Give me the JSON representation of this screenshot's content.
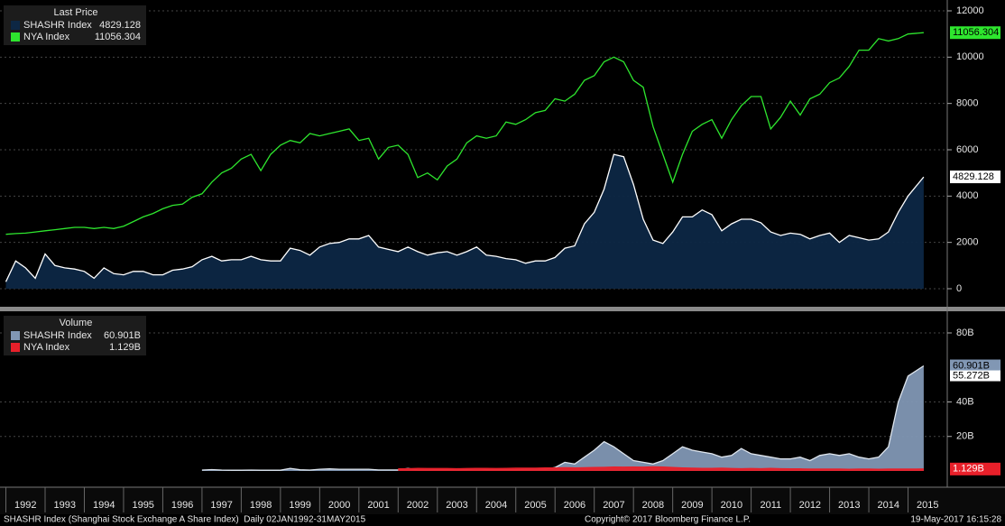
{
  "chart_data": [
    {
      "type": "area",
      "title": "Last Price",
      "xlim": [
        1991.85,
        2016.0
      ],
      "ylim": [
        0,
        12000
      ],
      "yticks": [
        0,
        2000,
        4000,
        6000,
        8000,
        10000,
        12000
      ],
      "grid": true,
      "series": [
        {
          "name": "SHASHR Index",
          "color": "#ffffff",
          "fill": "#0d2744",
          "x": [
            1992,
            1992.25,
            1992.5,
            1992.75,
            1993,
            1993.25,
            1993.5,
            1993.75,
            1994,
            1994.25,
            1994.5,
            1994.75,
            1995,
            1995.25,
            1995.5,
            1995.75,
            1996,
            1996.25,
            1996.5,
            1996.75,
            1997,
            1997.25,
            1997.5,
            1997.75,
            1998,
            1998.25,
            1998.5,
            1998.75,
            1999,
            1999.25,
            1999.5,
            1999.75,
            2000,
            2000.25,
            2000.5,
            2000.75,
            2001,
            2001.25,
            2001.5,
            2001.75,
            2002,
            2002.25,
            2002.5,
            2002.75,
            2003,
            2003.25,
            2003.5,
            2003.75,
            2004,
            2004.25,
            2004.5,
            2004.75,
            2005,
            2005.25,
            2005.5,
            2005.75,
            2006,
            2006.25,
            2006.5,
            2006.75,
            2007,
            2007.25,
            2007.5,
            2007.75,
            2008,
            2008.25,
            2008.5,
            2008.75,
            2009,
            2009.25,
            2009.5,
            2009.75,
            2010,
            2010.25,
            2010.5,
            2010.75,
            2011,
            2011.25,
            2011.5,
            2011.75,
            2012,
            2012.25,
            2012.5,
            2012.75,
            2013,
            2013.25,
            2013.5,
            2013.75,
            2014,
            2014.25,
            2014.5,
            2014.75,
            2015,
            2015.4
          ],
          "values": [
            300,
            1200,
            900,
            450,
            1500,
            1000,
            900,
            850,
            750,
            450,
            900,
            650,
            600,
            750,
            750,
            600,
            600,
            800,
            850,
            950,
            1250,
            1400,
            1200,
            1250,
            1250,
            1400,
            1250,
            1200,
            1200,
            1750,
            1650,
            1450,
            1800,
            1950,
            2000,
            2150,
            2150,
            2300,
            1800,
            1700,
            1600,
            1800,
            1600,
            1450,
            1550,
            1600,
            1450,
            1600,
            1800,
            1450,
            1400,
            1300,
            1250,
            1100,
            1200,
            1200,
            1350,
            1750,
            1850,
            2800,
            3300,
            4300,
            5800,
            5700,
            4500,
            3000,
            2100,
            1950,
            2450,
            3100,
            3100,
            3400,
            3200,
            2500,
            2800,
            3000,
            3000,
            2850,
            2450,
            2300,
            2400,
            2350,
            2150,
            2300,
            2400,
            2000,
            2300,
            2200,
            2100,
            2150,
            2450,
            3300,
            4000,
            4829.128
          ]
        },
        {
          "name": "NYA Index",
          "color": "#2ee62e",
          "fill": null,
          "x": [
            1992,
            1992.25,
            1992.5,
            1992.75,
            1993,
            1993.25,
            1993.5,
            1993.75,
            1994,
            1994.25,
            1994.5,
            1994.75,
            1995,
            1995.25,
            1995.5,
            1995.75,
            1996,
            1996.25,
            1996.5,
            1996.75,
            1997,
            1997.25,
            1997.5,
            1997.75,
            1998,
            1998.25,
            1998.5,
            1998.75,
            1999,
            1999.25,
            1999.5,
            1999.75,
            2000,
            2000.25,
            2000.5,
            2000.75,
            2001,
            2001.25,
            2001.5,
            2001.75,
            2002,
            2002.25,
            2002.5,
            2002.75,
            2003,
            2003.25,
            2003.5,
            2003.75,
            2004,
            2004.25,
            2004.5,
            2004.75,
            2005,
            2005.25,
            2005.5,
            2005.75,
            2006,
            2006.25,
            2006.5,
            2006.75,
            2007,
            2007.25,
            2007.5,
            2007.75,
            2008,
            2008.25,
            2008.5,
            2008.75,
            2009,
            2009.25,
            2009.5,
            2009.75,
            2010,
            2010.25,
            2010.5,
            2010.75,
            2011,
            2011.25,
            2011.5,
            2011.75,
            2012,
            2012.25,
            2012.5,
            2012.75,
            2013,
            2013.25,
            2013.5,
            2013.75,
            2014,
            2014.25,
            2014.5,
            2014.75,
            2015,
            2015.4
          ],
          "values": [
            2350,
            2380,
            2400,
            2450,
            2500,
            2550,
            2600,
            2650,
            2650,
            2600,
            2650,
            2600,
            2700,
            2900,
            3100,
            3250,
            3450,
            3600,
            3650,
            3950,
            4100,
            4600,
            5000,
            5200,
            5600,
            5800,
            5100,
            5800,
            6200,
            6400,
            6300,
            6700,
            6600,
            6700,
            6800,
            6900,
            6400,
            6500,
            5600,
            6100,
            6200,
            5800,
            4800,
            5000,
            4700,
            5300,
            5600,
            6300,
            6600,
            6500,
            6600,
            7200,
            7100,
            7300,
            7600,
            7700,
            8200,
            8100,
            8400,
            9000,
            9200,
            9800,
            10000,
            9800,
            9000,
            8700,
            7000,
            5800,
            4600,
            5800,
            6800,
            7100,
            7300,
            6500,
            7300,
            7900,
            8300,
            8300,
            6900,
            7400,
            8100,
            7500,
            8200,
            8400,
            8900,
            9100,
            9600,
            10300,
            10300,
            10800,
            10700,
            10800,
            11000,
            11056.304
          ]
        }
      ]
    },
    {
      "type": "area",
      "title": "Volume",
      "xlim": [
        1991.85,
        2016.0
      ],
      "xticks": [
        1992,
        1993,
        1994,
        1995,
        1996,
        1997,
        1998,
        1999,
        2000,
        2001,
        2002,
        2003,
        2004,
        2005,
        2006,
        2007,
        2008,
        2009,
        2010,
        2011,
        2012,
        2013,
        2014,
        2015
      ],
      "ylim": [
        0,
        87
      ],
      "yticks": [
        {
          "value": 20,
          "label": "20B"
        },
        {
          "value": 40,
          "label": "40B"
        },
        {
          "value": 80,
          "label": "80B"
        }
      ],
      "grid": true,
      "annotations": [
        "55.272B"
      ],
      "series": [
        {
          "name": "SHASHR Index",
          "color": "#dfe6ee",
          "fill": "#8197b4",
          "last_label": "60.901B",
          "x": [
            1997,
            1997.25,
            1997.5,
            1997.75,
            1998,
            1998.25,
            1998.5,
            1998.75,
            1999,
            1999.25,
            1999.5,
            1999.75,
            2000,
            2000.25,
            2000.5,
            2000.75,
            2001,
            2001.25,
            2001.5,
            2001.75,
            2002,
            2002.25,
            2002.5,
            2002.75,
            2003,
            2003.25,
            2003.5,
            2003.75,
            2004,
            2004.25,
            2004.5,
            2004.75,
            2005,
            2005.25,
            2005.5,
            2005.75,
            2006,
            2006.25,
            2006.5,
            2006.75,
            2007,
            2007.25,
            2007.5,
            2007.75,
            2008,
            2008.25,
            2008.5,
            2008.75,
            2009,
            2009.25,
            2009.5,
            2009.75,
            2010,
            2010.25,
            2010.5,
            2010.75,
            2011,
            2011.25,
            2011.5,
            2011.75,
            2012,
            2012.25,
            2012.5,
            2012.75,
            2013,
            2013.25,
            2013.5,
            2013.75,
            2014,
            2014.25,
            2014.5,
            2014.75,
            2015,
            2015.4
          ],
          "values": [
            0.5,
            0.8,
            0.5,
            0.4,
            0.4,
            0.5,
            0.4,
            0.4,
            0.4,
            1.5,
            0.7,
            0.5,
            1.0,
            1.2,
            1.0,
            1.0,
            1.0,
            1.0,
            0.6,
            0.6,
            0.6,
            1.5,
            0.6,
            0.5,
            0.8,
            0.8,
            0.6,
            0.8,
            1.5,
            0.8,
            0.8,
            0.8,
            0.7,
            1.0,
            1.2,
            1.0,
            2,
            5,
            4,
            8,
            12,
            17,
            14,
            10,
            6,
            5,
            4,
            6,
            10,
            14,
            12,
            11,
            10,
            8,
            9,
            13,
            10,
            9,
            8,
            7,
            7,
            8,
            6,
            9,
            10,
            9,
            10,
            8,
            7,
            8,
            14,
            40,
            55,
            60.901
          ]
        },
        {
          "name": "NYA Index",
          "color": "#e8202a",
          "fill": "#e8202a",
          "last_label": "1.129B",
          "x": [
            2002,
            2002.25,
            2002.5,
            2002.75,
            2003,
            2003.25,
            2003.5,
            2003.75,
            2004,
            2004.25,
            2004.5,
            2004.75,
            2005,
            2005.25,
            2005.5,
            2005.75,
            2006,
            2006.25,
            2006.5,
            2006.75,
            2007,
            2007.25,
            2007.5,
            2007.75,
            2008,
            2008.25,
            2008.5,
            2008.75,
            2009,
            2009.25,
            2009.5,
            2009.75,
            2010,
            2010.25,
            2010.5,
            2010.75,
            2011,
            2011.25,
            2011.5,
            2011.75,
            2012,
            2012.25,
            2012.5,
            2012.75,
            2013,
            2013.25,
            2013.5,
            2013.75,
            2014,
            2014.25,
            2014.5,
            2014.75,
            2015,
            2015.4
          ],
          "values": [
            1.2,
            1.3,
            1.5,
            1.4,
            1.4,
            1.4,
            1.3,
            1.4,
            1.5,
            1.5,
            1.4,
            1.5,
            1.6,
            1.6,
            1.6,
            1.7,
            1.8,
            1.9,
            1.8,
            1.9,
            2.0,
            2.1,
            2.3,
            2.2,
            2.3,
            2.2,
            2.4,
            2.3,
            2.0,
            1.8,
            1.6,
            1.5,
            1.5,
            1.6,
            1.4,
            1.3,
            1.4,
            1.3,
            1.5,
            1.3,
            1.2,
            1.2,
            1.1,
            1.1,
            1.1,
            1.1,
            1.0,
            1.1,
            1.1,
            1.0,
            1.1,
            1.1,
            1.1,
            1.129
          ]
        }
      ]
    }
  ],
  "footer": {
    "left": "SHASHR Index (Shanghai Stock Exchange A Share Index)  Daily 02JAN1992-31MAY2015",
    "center": "Copyright© 2017 Bloomberg Finance L.P.",
    "right": "19-May-2017 16:15:28"
  }
}
